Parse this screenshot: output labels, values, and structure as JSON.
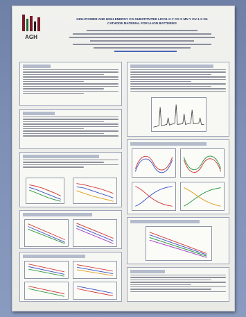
{
  "poster": {
    "logo_text": "AGH",
    "title_line1": "HIGH POWER AND HIGH ENERGY Co-SUBSTITUTED LiCo1-x-y Co x Mn y Cu 1-x O4",
    "title_line2": "CATHODE MATERIAL FOR Li-ION BATTERIES"
  },
  "colors": {
    "wall": "#7d8fb5",
    "poster": "#efefec",
    "title": "#1c2a5c",
    "agh_red": "#7a1a24",
    "agh_green": "#1f6b3a"
  }
}
